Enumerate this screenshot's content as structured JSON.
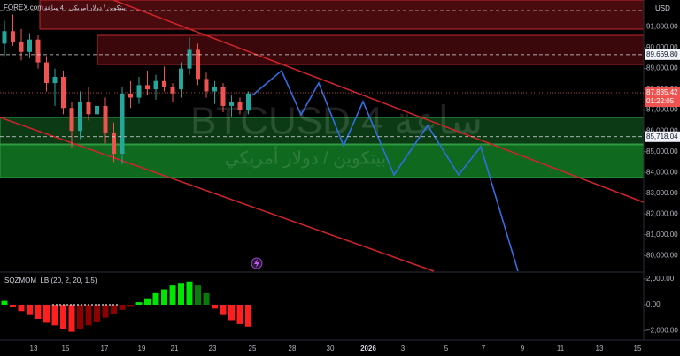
{
  "header": {
    "broker": "FOREX.com",
    "title": "بيتكوين / دولار أمريكي · 4 ساعة",
    "currency": "USD"
  },
  "watermark": {
    "symbol": "BTCUSD 4 ساعة",
    "name": "بيتكوين / دولار أمريكي"
  },
  "chart_data": [
    {
      "type": "candlestick",
      "candles": [
        [
          90200,
          91300,
          89600,
          90800
        ],
        [
          90800,
          91600,
          90100,
          90300
        ],
        [
          90300,
          90900,
          89400,
          89800
        ],
        [
          89800,
          90700,
          89500,
          90400
        ],
        [
          90400,
          90600,
          89000,
          89300
        ],
        [
          89300,
          89600,
          87900,
          88300
        ],
        [
          88300,
          89000,
          87200,
          88600
        ],
        [
          88600,
          88900,
          86800,
          87100
        ],
        [
          87100,
          87400,
          85200,
          86000
        ],
        [
          86000,
          87900,
          85600,
          87400
        ],
        [
          87400,
          88100,
          86500,
          86800
        ],
        [
          86800,
          87500,
          86100,
          87200
        ],
        [
          87200,
          87600,
          85400,
          85900
        ],
        [
          85900,
          86400,
          84500,
          84900
        ],
        [
          84900,
          88100,
          84400,
          87800
        ],
        [
          87800,
          88400,
          87100,
          87600
        ],
        [
          87600,
          88600,
          87300,
          88200
        ],
        [
          88200,
          88900,
          87700,
          88000
        ],
        [
          88000,
          88700,
          87500,
          88400
        ],
        [
          88400,
          89100,
          87900,
          88100
        ],
        [
          88100,
          88300,
          87400,
          87800
        ],
        [
          88000,
          89300,
          87600,
          89000
        ],
        [
          89000,
          90500,
          88700,
          89900
        ],
        [
          89900,
          90200,
          88200,
          88500
        ],
        [
          88500,
          88800,
          87600,
          87900
        ],
        [
          87900,
          88400,
          87300,
          88100
        ],
        [
          88100,
          88300,
          86900,
          87200
        ],
        [
          87200,
          87700,
          86700,
          87400
        ],
        [
          87400,
          87600,
          86800,
          87000
        ],
        [
          87000,
          87900,
          86800,
          87800
        ]
      ],
      "ylim": [
        79500,
        92300
      ],
      "yticks": [
        {
          "value": 91000,
          "label": "91,000.00"
        },
        {
          "value": 90000,
          "label": "90,000.00"
        },
        {
          "value": 89000,
          "label": "89,000.00"
        },
        {
          "value": 88000,
          "label": "88,000.00"
        },
        {
          "value": 87000,
          "label": "87,000.00"
        },
        {
          "value": 86000,
          "label": "86,000.00"
        },
        {
          "value": 85000,
          "label": "85,000.00"
        },
        {
          "value": 84000,
          "label": "84,000.00"
        },
        {
          "value": 83000,
          "label": "83,000.00"
        },
        {
          "value": 82000,
          "label": "82,000.00"
        },
        {
          "value": 81000,
          "label": "81,000.00"
        },
        {
          "value": 80000,
          "label": "80,000.00"
        }
      ],
      "levels": [
        {
          "value": 89669.8,
          "label": "89,669.80"
        },
        {
          "value": 85718.04,
          "label": "85,718.04"
        }
      ],
      "last_price": {
        "value": 87835.42,
        "label": "87,835.42",
        "countdown": "01:22:05"
      },
      "up_color": "#26a69a",
      "down_color": "#ef5350",
      "categories": [
        "13",
        "15",
        "17",
        "19",
        "21",
        "23",
        "25",
        "28",
        "30",
        "2026",
        "3",
        "5",
        "7",
        "9",
        "11",
        "13",
        "15"
      ]
    },
    {
      "type": "histogram",
      "title": "SQZMOM_LB (20, 2, 20, 1.5)",
      "values": [
        300,
        -200,
        -500,
        -800,
        -1100,
        -1400,
        -1600,
        -1900,
        -2100,
        -1900,
        -1600,
        -1300,
        -1000,
        -700,
        -400,
        -100,
        200,
        500,
        900,
        1200,
        1500,
        1700,
        1800,
        1500,
        900,
        -300,
        -800,
        -1200,
        -1500,
        -1700
      ],
      "ylim": [
        -2400,
        2400
      ],
      "yticks": [
        {
          "value": 2000,
          "label": "2,000.00"
        },
        {
          "value": 0,
          "label": "0.00"
        },
        {
          "value": -2000,
          "label": "−2,000.00"
        }
      ]
    }
  ]
}
